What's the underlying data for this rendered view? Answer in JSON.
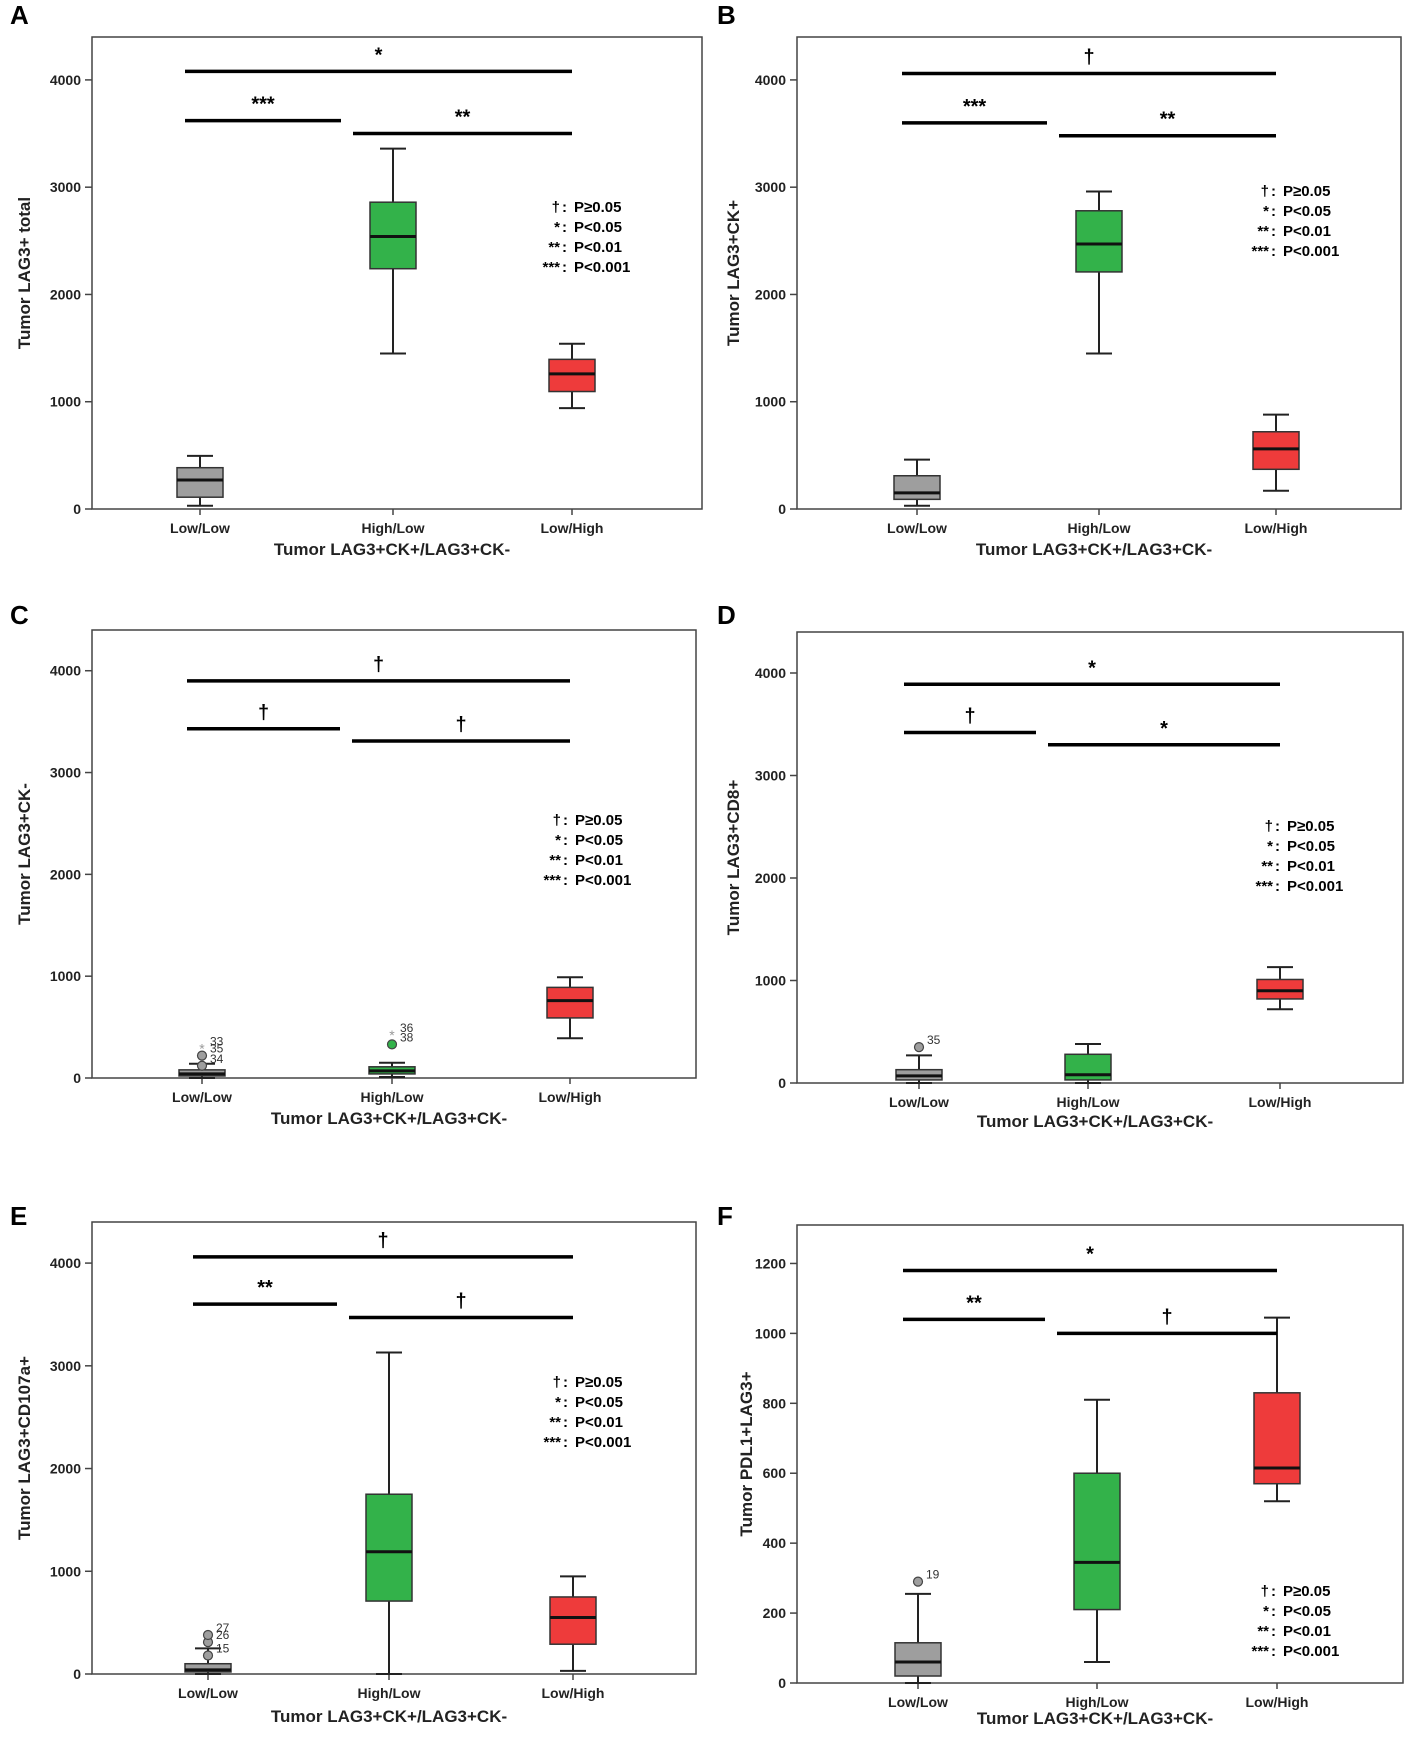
{
  "panels": [
    {
      "letter": "A",
      "chart_data": {
        "type": "boxplot",
        "categories": [
          "Low/Low",
          "High/Low",
          "Low/High"
        ],
        "ylabel": "Tumor LAG3+ total",
        "xlabel": "Tumor LAG3+CK+/LAG3+CK-",
        "ylim": [
          0,
          4400
        ],
        "yticks": [
          0,
          1000,
          2000,
          3000,
          4000
        ],
        "boxes": [
          {
            "min": 30,
            "q1": 110,
            "median": 270,
            "q3": 385,
            "max": 495,
            "color": "#9e9e9e"
          },
          {
            "min": 1450,
            "q1": 2240,
            "median": 2540,
            "q3": 2860,
            "max": 3360,
            "color": "#33b24a"
          },
          {
            "min": 940,
            "q1": 1095,
            "median": 1260,
            "q3": 1395,
            "max": 1540,
            "color": "#ee3b3b"
          }
        ],
        "outliers": [],
        "significance": [
          {
            "from": 0,
            "to": 2,
            "y": 4080,
            "label": "*"
          },
          {
            "from": 0,
            "to": 1,
            "y": 3620,
            "label": "***"
          },
          {
            "from": 1,
            "to": 2,
            "y": 3500,
            "label": "**"
          }
        ]
      }
    },
    {
      "letter": "B",
      "chart_data": {
        "type": "boxplot",
        "categories": [
          "Low/Low",
          "High/Low",
          "Low/High"
        ],
        "ylabel": "Tumor LAG3+CK+",
        "xlabel": "Tumor LAG3+CK+/LAG3+CK-",
        "ylim": [
          0,
          4400
        ],
        "yticks": [
          0,
          1000,
          2000,
          3000,
          4000
        ],
        "boxes": [
          {
            "min": 30,
            "q1": 90,
            "median": 150,
            "q3": 310,
            "max": 460,
            "color": "#9e9e9e"
          },
          {
            "min": 1450,
            "q1": 2210,
            "median": 2470,
            "q3": 2780,
            "max": 2960,
            "color": "#33b24a"
          },
          {
            "min": 170,
            "q1": 370,
            "median": 560,
            "q3": 720,
            "max": 880,
            "color": "#ee3b3b"
          }
        ],
        "outliers": [],
        "significance": [
          {
            "from": 0,
            "to": 2,
            "y": 4060,
            "label": "†"
          },
          {
            "from": 0,
            "to": 1,
            "y": 3600,
            "label": "***"
          },
          {
            "from": 1,
            "to": 2,
            "y": 3480,
            "label": "**"
          }
        ]
      }
    },
    {
      "letter": "C",
      "chart_data": {
        "type": "boxplot",
        "categories": [
          "Low/Low",
          "High/Low",
          "Low/High"
        ],
        "ylabel": "Tumor LAG3+CK-",
        "xlabel": "Tumor LAG3+CK+/LAG3+CK-",
        "ylim": [
          0,
          4400
        ],
        "yticks": [
          0,
          1000,
          2000,
          3000,
          4000
        ],
        "boxes": [
          {
            "min": 0,
            "q1": 20,
            "median": 40,
            "q3": 80,
            "max": 140,
            "color": "#9e9e9e"
          },
          {
            "min": 10,
            "q1": 40,
            "median": 70,
            "q3": 110,
            "max": 150,
            "color": "#33b24a"
          },
          {
            "min": 390,
            "q1": 590,
            "median": 760,
            "q3": 890,
            "max": 990,
            "color": "#ee3b3b"
          }
        ],
        "outliers": [
          {
            "group": 0,
            "value": 220,
            "label": "35",
            "marker": "circle"
          },
          {
            "group": 0,
            "value": 290,
            "label": "33",
            "marker": "star"
          },
          {
            "group": 0,
            "value": 120,
            "label": "34",
            "marker": "circle"
          },
          {
            "group": 1,
            "value": 330,
            "label": "38",
            "marker": "circle"
          },
          {
            "group": 1,
            "value": 420,
            "label": "36",
            "marker": "star"
          }
        ],
        "significance": [
          {
            "from": 0,
            "to": 2,
            "y": 3900,
            "label": "†"
          },
          {
            "from": 0,
            "to": 1,
            "y": 3430,
            "label": "†"
          },
          {
            "from": 1,
            "to": 2,
            "y": 3310,
            "label": "†"
          }
        ]
      }
    },
    {
      "letter": "D",
      "chart_data": {
        "type": "boxplot",
        "categories": [
          "Low/Low",
          "High/Low",
          "Low/High"
        ],
        "ylabel": "Tumor LAG3+CD8+",
        "xlabel": "Tumor LAG3+CK+/LAG3+CK-",
        "ylim": [
          0,
          4400
        ],
        "yticks": [
          0,
          1000,
          2000,
          3000,
          4000
        ],
        "boxes": [
          {
            "min": 0,
            "q1": 30,
            "median": 70,
            "q3": 130,
            "max": 270,
            "color": "#9e9e9e"
          },
          {
            "min": 0,
            "q1": 30,
            "median": 80,
            "q3": 280,
            "max": 380,
            "color": "#33b24a"
          },
          {
            "min": 720,
            "q1": 820,
            "median": 900,
            "q3": 1010,
            "max": 1130,
            "color": "#ee3b3b"
          }
        ],
        "outliers": [
          {
            "group": 0,
            "value": 350,
            "label": "35",
            "marker": "circle"
          }
        ],
        "significance": [
          {
            "from": 0,
            "to": 2,
            "y": 3890,
            "label": "*"
          },
          {
            "from": 0,
            "to": 1,
            "y": 3420,
            "label": "†"
          },
          {
            "from": 1,
            "to": 2,
            "y": 3300,
            "label": "*"
          }
        ]
      }
    },
    {
      "letter": "E",
      "chart_data": {
        "type": "boxplot",
        "categories": [
          "Low/Low",
          "High/Low",
          "Low/High"
        ],
        "ylabel": "Tumor LAG3+CD107a+",
        "xlabel": "Tumor LAG3+CK+/LAG3+CK-",
        "ylim": [
          0,
          4400
        ],
        "yticks": [
          0,
          1000,
          2000,
          3000,
          4000
        ],
        "boxes": [
          {
            "min": 0,
            "q1": 20,
            "median": 40,
            "q3": 100,
            "max": 250,
            "color": "#9e9e9e"
          },
          {
            "min": 0,
            "q1": 710,
            "median": 1190,
            "q3": 1750,
            "max": 3130,
            "color": "#33b24a"
          },
          {
            "min": 30,
            "q1": 290,
            "median": 550,
            "q3": 750,
            "max": 950,
            "color": "#ee3b3b"
          }
        ],
        "outliers": [
          {
            "group": 0,
            "value": 310,
            "label": "26",
            "marker": "circle"
          },
          {
            "group": 0,
            "value": 380,
            "label": "27",
            "marker": "circle"
          },
          {
            "group": 0,
            "value": 180,
            "label": "15",
            "marker": "circle"
          }
        ],
        "significance": [
          {
            "from": 0,
            "to": 2,
            "y": 4060,
            "label": "†"
          },
          {
            "from": 0,
            "to": 1,
            "y": 3600,
            "label": "**"
          },
          {
            "from": 1,
            "to": 2,
            "y": 3470,
            "label": "†"
          }
        ]
      }
    },
    {
      "letter": "F",
      "chart_data": {
        "type": "boxplot",
        "categories": [
          "Low/Low",
          "High/Low",
          "Low/High"
        ],
        "ylabel": "Tumor PDL1+LAG3+",
        "xlabel": "Tumor LAG3+CK+/LAG3+CK-",
        "ylim": [
          0,
          1310
        ],
        "yticks": [
          0,
          200,
          400,
          600,
          800,
          1000,
          1200
        ],
        "boxes": [
          {
            "min": 0,
            "q1": 20,
            "median": 60,
            "q3": 115,
            "max": 255,
            "color": "#9e9e9e"
          },
          {
            "min": 60,
            "q1": 210,
            "median": 345,
            "q3": 600,
            "max": 810,
            "color": "#33b24a"
          },
          {
            "min": 520,
            "q1": 570,
            "median": 615,
            "q3": 830,
            "max": 1045,
            "color": "#ee3b3b"
          }
        ],
        "outliers": [
          {
            "group": 0,
            "value": 290,
            "label": "19",
            "marker": "circle"
          }
        ],
        "significance": [
          {
            "from": 0,
            "to": 2,
            "y": 1180,
            "label": "*"
          },
          {
            "from": 0,
            "to": 1,
            "y": 1040,
            "label": "**"
          },
          {
            "from": 1,
            "to": 2,
            "y": 1000,
            "label": "†"
          }
        ]
      }
    }
  ],
  "legend": [
    {
      "symbol": "†",
      "text": "P≥0.05"
    },
    {
      "symbol": "*",
      "text": "P<0.05"
    },
    {
      "symbol": "**",
      "text": "P<0.01"
    },
    {
      "symbol": "***",
      "text": "P<0.001"
    }
  ],
  "colors": {
    "low_low": "#9e9e9e",
    "high_low": "#33b24a",
    "low_high": "#ee3b3b"
  }
}
